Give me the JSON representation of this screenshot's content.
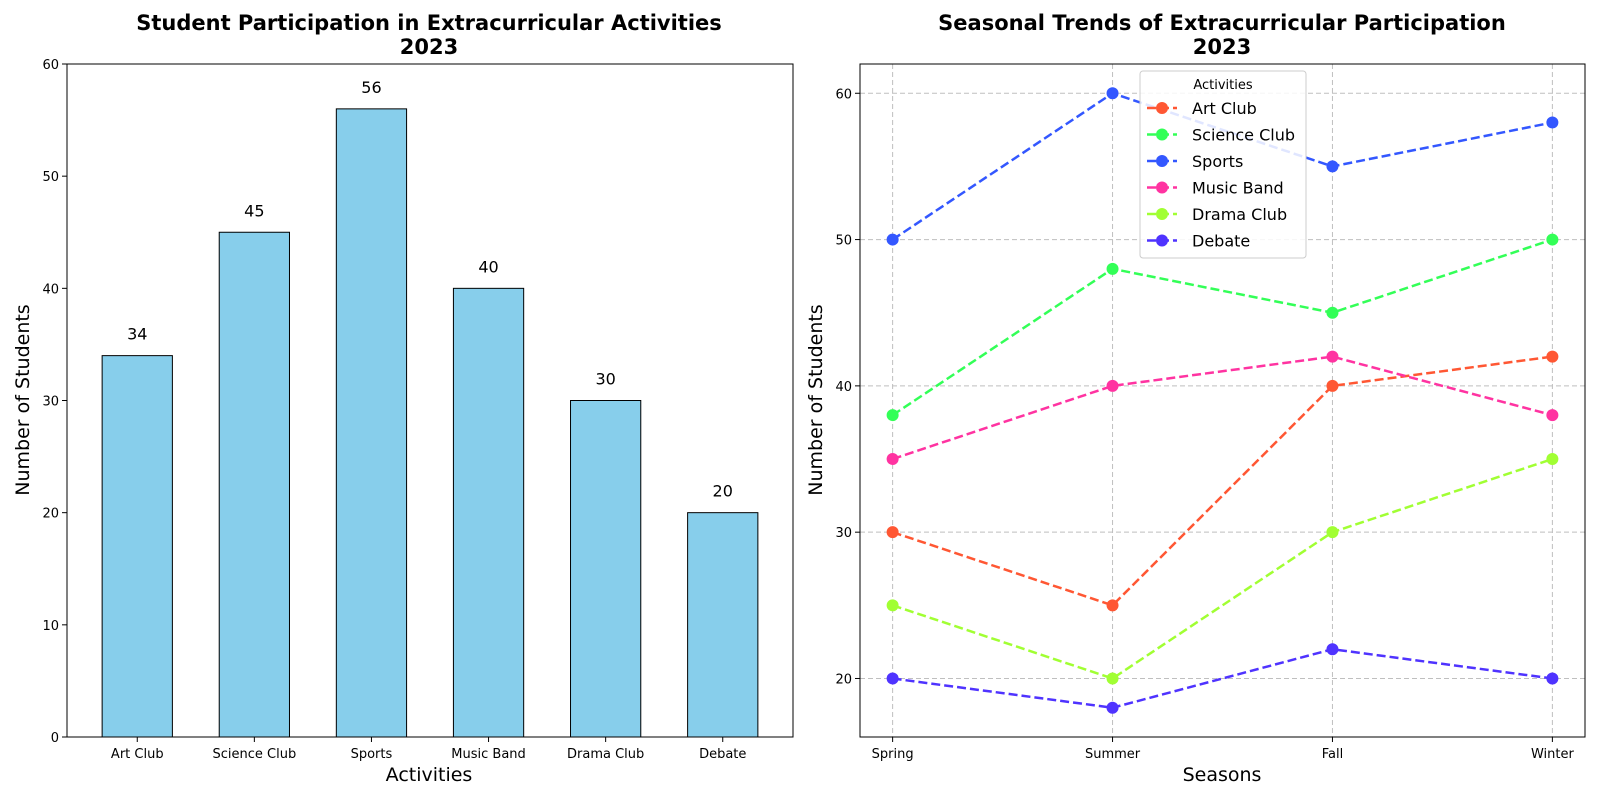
{
  "chart_data": [
    {
      "type": "bar",
      "title": "Student Participation in Extracurricular Activities\n2023",
      "xlabel": "Activities",
      "ylabel": "Number of Students",
      "categories": [
        "Art Club",
        "Science Club",
        "Sports",
        "Music Band",
        "Drama Club",
        "Debate"
      ],
      "values": [
        34,
        45,
        56,
        40,
        30,
        20
      ],
      "ylim": [
        0,
        60
      ],
      "yticks": [
        0,
        10,
        20,
        30,
        40,
        50,
        60
      ],
      "bar_color": "#87ceeb",
      "grid": false,
      "data_labels": true
    },
    {
      "type": "line",
      "title": "Seasonal Trends of Extracurricular Participation\n2023",
      "xlabel": "Seasons",
      "ylabel": "Number of Students",
      "categories": [
        "Spring",
        "Summer",
        "Fall",
        "Winter"
      ],
      "ylim": [
        16,
        62
      ],
      "yticks": [
        20,
        30,
        40,
        50,
        60
      ],
      "grid": true,
      "legend_title": "Activities",
      "legend_position": "upper-center",
      "series": [
        {
          "name": "Art Club",
          "color": "#ff5733",
          "values": [
            30,
            25,
            40,
            42
          ]
        },
        {
          "name": "Science Club",
          "color": "#33ff57",
          "values": [
            38,
            48,
            45,
            50
          ]
        },
        {
          "name": "Sports",
          "color": "#3357ff",
          "values": [
            50,
            60,
            55,
            58
          ]
        },
        {
          "name": "Music Band",
          "color": "#ff33a1",
          "values": [
            35,
            40,
            42,
            38
          ]
        },
        {
          "name": "Drama Club",
          "color": "#a1ff33",
          "values": [
            25,
            20,
            30,
            35
          ]
        },
        {
          "name": "Debate",
          "color": "#4f33ff",
          "values": [
            20,
            18,
            22,
            20
          ]
        }
      ]
    }
  ]
}
